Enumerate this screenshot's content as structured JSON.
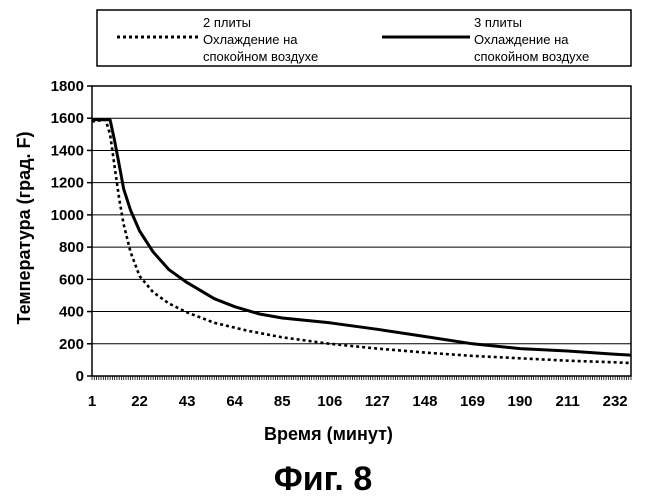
{
  "chart_data": {
    "type": "line",
    "caption": "Фиг. 8",
    "xlabel": "Время (минут)",
    "ylabel": "Температура (град. F)",
    "xlim": [
      1,
      239
    ],
    "ylim": [
      0,
      1800
    ],
    "xticks": [
      1,
      22,
      43,
      64,
      85,
      106,
      127,
      148,
      169,
      190,
      211,
      232
    ],
    "yticks": [
      0,
      200,
      400,
      600,
      800,
      1000,
      1200,
      1400,
      1600,
      1800
    ],
    "grid": "horizontal",
    "legend_position": "top",
    "series": [
      {
        "name": "2 плиты Охлаждение на спокойном воздухе",
        "legend_lines": [
          "2 плиты",
          "Охлаждение на",
          "спокойном воздухе"
        ],
        "style": "dotted",
        "x": [
          1,
          7,
          9,
          11,
          13,
          15,
          18,
          22,
          28,
          35,
          43,
          55,
          70,
          85,
          106,
          127,
          148,
          169,
          190,
          211,
          232,
          239
        ],
        "y": [
          1580,
          1590,
          1500,
          1300,
          1100,
          940,
          770,
          620,
          520,
          450,
          395,
          330,
          280,
          240,
          200,
          170,
          145,
          125,
          110,
          95,
          85,
          80
        ]
      },
      {
        "name": "3 плиты Охлаждение на спокойном воздухе",
        "legend_lines": [
          "3 плиты",
          "Охлаждение на",
          "спокойном воздухе"
        ],
        "style": "solid",
        "x": [
          1,
          9,
          11,
          13,
          15,
          18,
          22,
          28,
          35,
          43,
          55,
          64,
          75,
          85,
          106,
          127,
          148,
          169,
          190,
          211,
          232,
          239
        ],
        "y": [
          1590,
          1590,
          1460,
          1310,
          1160,
          1030,
          900,
          770,
          660,
          580,
          480,
          430,
          385,
          360,
          330,
          290,
          245,
          200,
          170,
          155,
          135,
          130
        ]
      }
    ]
  }
}
